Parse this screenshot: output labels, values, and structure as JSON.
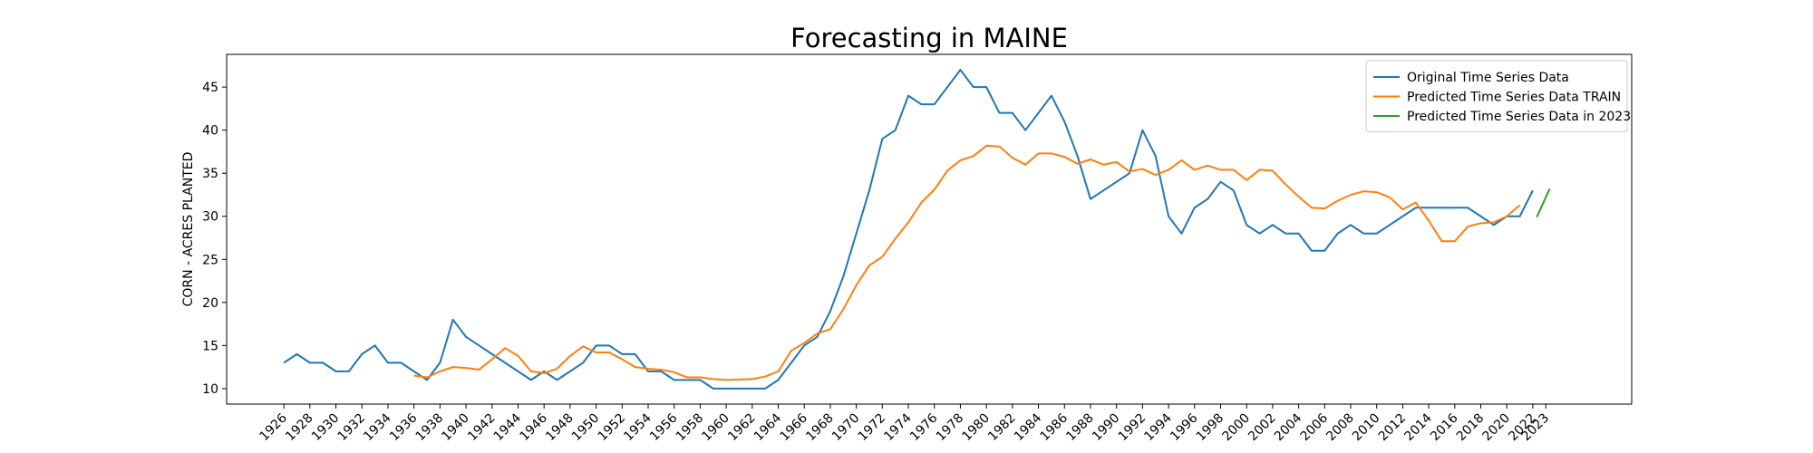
{
  "chart_data": {
    "type": "line",
    "title": "Forecasting in MAINE",
    "xlabel": "",
    "ylabel": "CORN - ACRES PLANTED",
    "xlim": [
      1921.6,
      2029.6
    ],
    "ylim": [
      8.2,
      48.8
    ],
    "yticks": [
      10,
      15,
      20,
      25,
      30,
      35,
      40,
      45
    ],
    "xticks": [
      1926,
      1928,
      1930,
      1932,
      1934,
      1936,
      1938,
      1940,
      1942,
      1944,
      1946,
      1948,
      1950,
      1952,
      1954,
      1956,
      1958,
      1960,
      1962,
      1964,
      1966,
      1968,
      1970,
      1972,
      1974,
      1976,
      1978,
      1980,
      1982,
      1984,
      1986,
      1988,
      1990,
      1992,
      1994,
      1996,
      1998,
      2000,
      2002,
      2004,
      2006,
      2008,
      2010,
      2012,
      2014,
      2016,
      2018,
      2020,
      2022,
      2023
    ],
    "grid": false,
    "legend_position": "top-right",
    "series": [
      {
        "name": "Original Time Series Data",
        "color": "#1f77b4",
        "x": [
          1926,
          1927,
          1928,
          1929,
          1930,
          1931,
          1932,
          1933,
          1934,
          1935,
          1936,
          1937,
          1938,
          1939,
          1940,
          1941,
          1942,
          1943,
          1944,
          1945,
          1946,
          1947,
          1948,
          1949,
          1950,
          1951,
          1952,
          1953,
          1954,
          1955,
          1956,
          1957,
          1958,
          1959,
          1960,
          1961,
          1962,
          1963,
          1964,
          1965,
          1966,
          1967,
          1968,
          1969,
          1970,
          1971,
          1972,
          1973,
          1974,
          1975,
          1976,
          1977,
          1978,
          1979,
          1980,
          1981,
          1982,
          1983,
          1984,
          1985,
          1986,
          1987,
          1988,
          1989,
          1990,
          1991,
          1992,
          1993,
          1994,
          1995,
          1996,
          1997,
          1998,
          1999,
          2000,
          2001,
          2002,
          2003,
          2004,
          2005,
          2006,
          2007,
          2008,
          2009,
          2010,
          2011,
          2012,
          2013,
          2014,
          2015,
          2016,
          2017,
          2018,
          2019,
          2020,
          2021,
          2022
        ],
        "values": [
          13,
          14,
          13,
          13,
          12,
          12,
          14,
          15,
          13,
          13,
          12,
          11,
          13,
          18,
          16,
          15,
          14,
          13,
          12,
          11,
          12,
          11,
          12,
          13,
          15,
          15,
          14,
          14,
          12,
          12,
          11,
          11,
          11,
          10,
          10,
          10,
          10,
          10,
          11,
          13,
          15,
          16,
          19,
          23,
          28,
          33,
          39,
          40,
          44,
          43,
          43,
          45,
          47,
          45,
          45,
          42,
          42,
          40,
          42,
          44,
          41,
          37,
          32,
          33,
          34,
          35,
          40,
          37,
          30,
          28,
          31,
          32,
          34,
          33,
          29,
          28,
          29,
          28,
          28,
          26,
          26,
          28,
          29,
          28,
          28,
          29,
          30,
          31,
          31,
          31,
          31,
          31,
          30,
          29,
          30,
          30,
          33
        ]
      },
      {
        "name": "Predicted Time Series Data TRAIN",
        "color": "#ff7f0e",
        "x": [
          1936,
          1937,
          1938,
          1939,
          1940,
          1941,
          1942,
          1943,
          1944,
          1945,
          1946,
          1947,
          1948,
          1949,
          1950,
          1951,
          1952,
          1953,
          1954,
          1955,
          1956,
          1957,
          1958,
          1959,
          1960,
          1961,
          1962,
          1963,
          1964,
          1965,
          1966,
          1967,
          1968,
          1969,
          1970,
          1971,
          1972,
          1973,
          1974,
          1975,
          1976,
          1977,
          1978,
          1979,
          1980,
          1981,
          1982,
          1983,
          1984,
          1985,
          1986,
          1987,
          1988,
          1989,
          1990,
          1991,
          1992,
          1993,
          1994,
          1995,
          1996,
          1997,
          1998,
          1999,
          2000,
          2001,
          2002,
          2003,
          2004,
          2005,
          2006,
          2007,
          2008,
          2009,
          2010,
          2011,
          2012,
          2013,
          2014,
          2015,
          2016,
          2017,
          2018,
          2019,
          2020,
          2021
        ],
        "values": [
          11.5,
          11.3,
          12.0,
          12.5,
          12.4,
          12.2,
          13.4,
          14.7,
          13.8,
          12.0,
          11.8,
          12.3,
          13.8,
          14.9,
          14.2,
          14.2,
          13.4,
          12.5,
          12.3,
          12.2,
          11.9,
          11.3,
          11.3,
          11.1,
          11.0,
          11.05,
          11.1,
          11.4,
          12.0,
          14.4,
          15.3,
          16.4,
          16.9,
          19.2,
          22.0,
          24.3,
          25.3,
          27.4,
          29.3,
          31.6,
          33.1,
          35.3,
          36.5,
          37.0,
          38.2,
          38.1,
          36.8,
          36.0,
          37.3,
          37.3,
          36.9,
          36.1,
          36.6,
          36.0,
          36.3,
          35.2,
          35.5,
          34.8,
          35.4,
          36.5,
          35.4,
          35.9,
          35.4,
          35.4,
          34.2,
          35.4,
          35.3,
          33.7,
          32.3,
          31.0,
          30.9,
          31.8,
          32.5,
          32.9,
          32.8,
          32.2,
          30.8,
          31.6,
          29.5,
          27.1,
          27.1,
          28.8,
          29.2,
          29.3,
          30.0,
          31.3
        ]
      },
      {
        "name": "Predicted Time Series Data in 2023",
        "color": "#2ca02c",
        "x": [
          2022.3,
          2023.3
        ],
        "values": [
          29.9,
          33.2
        ]
      }
    ]
  }
}
